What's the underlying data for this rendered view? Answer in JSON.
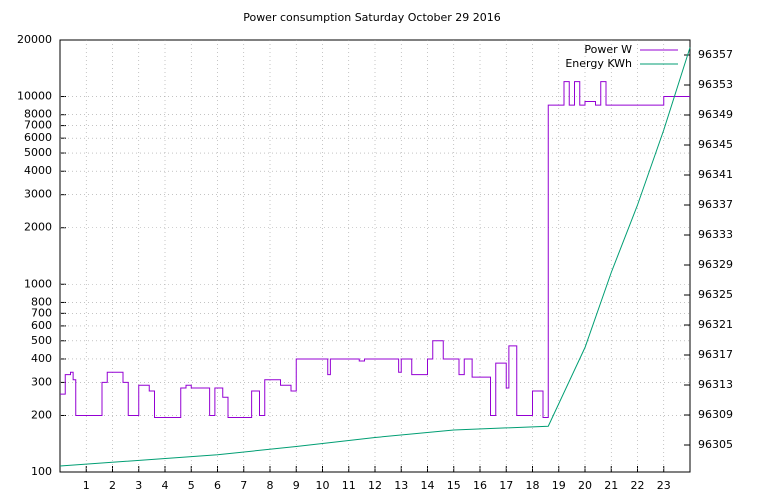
{
  "chart_data": {
    "type": "line",
    "title": "Power consumption Saturday October 29 2016",
    "xlim": [
      0,
      24
    ],
    "xticks": [
      1,
      2,
      3,
      4,
      5,
      6,
      7,
      8,
      9,
      10,
      11,
      12,
      13,
      14,
      15,
      16,
      17,
      18,
      19,
      20,
      21,
      22,
      23
    ],
    "ylim": [
      100,
      20000
    ],
    "log_y": true,
    "yticks": [
      100,
      200,
      300,
      400,
      500,
      600,
      700,
      800,
      1000,
      2000,
      3000,
      4000,
      5000,
      6000,
      7000,
      8000,
      10000,
      20000
    ],
    "y2lim": [
      96301.4,
      96359
    ],
    "y2ticks": [
      96305,
      96309,
      96313,
      96317,
      96321,
      96325,
      96329,
      96333,
      96337,
      96341,
      96345,
      96349,
      96353,
      96357
    ],
    "grid": true,
    "legend": "top-right",
    "series": [
      {
        "name": "Power W",
        "color": "#9400d3",
        "step": true,
        "x": [
          0,
          0.2,
          0.4,
          0.5,
          0.6,
          1.6,
          1.8,
          2.4,
          2.6,
          3.0,
          3.4,
          3.6,
          4.6,
          4.8,
          5.0,
          5.7,
          5.9,
          6.2,
          6.4,
          7.3,
          7.6,
          7.8,
          8.4,
          8.8,
          9.0,
          9.8,
          10.2,
          10.3,
          11.4,
          11.6,
          12.6,
          12.9,
          13.0,
          13.4,
          14.0,
          14.2,
          14.6,
          15.2,
          15.4,
          15.7,
          16.4,
          16.6,
          17.0,
          17.1,
          17.4,
          18.0,
          18.4,
          18.6,
          19.0,
          19.2,
          19.4,
          19.6,
          19.8,
          20.0,
          20.4,
          20.6,
          20.8,
          21.0,
          22.5,
          23.0,
          24
        ],
        "values": [
          260,
          330,
          340,
          310,
          200,
          300,
          340,
          300,
          200,
          290,
          270,
          195,
          280,
          290,
          280,
          200,
          280,
          250,
          195,
          270,
          200,
          310,
          290,
          270,
          400,
          400,
          330,
          400,
          390,
          400,
          400,
          340,
          400,
          330,
          400,
          500,
          400,
          330,
          400,
          320,
          200,
          380,
          280,
          470,
          200,
          270,
          195,
          9000,
          9000,
          12000,
          9000,
          12000,
          9000,
          9400,
          9000,
          12000,
          9000,
          9000,
          9000,
          10000,
          10000
        ]
      },
      {
        "name": "Energy KWh",
        "color": "#009e73",
        "axis": "y2",
        "x": [
          0,
          6,
          9,
          12,
          15,
          18.6,
          20,
          21,
          22,
          23,
          24
        ],
        "values": [
          96302.2,
          96303.7,
          96304.8,
          96306,
          96307,
          96307.5,
          96318,
          96328,
          96337,
          96347,
          96358
        ]
      }
    ]
  }
}
